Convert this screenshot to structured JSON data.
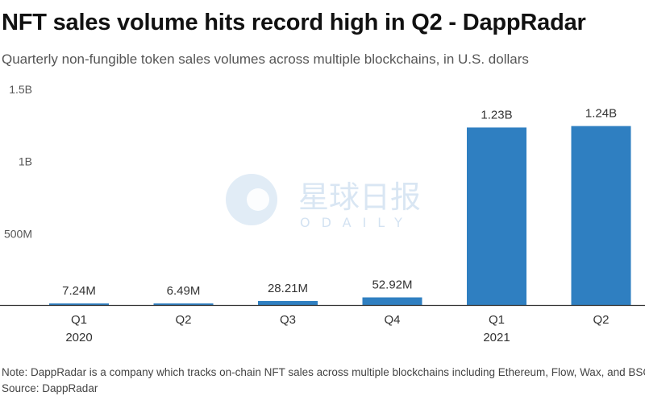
{
  "header": {
    "title": "NFT sales volume hits record high in Q2 - DappRadar",
    "subtitle": "Quarterly non-fungible token sales volumes across multiple blockchains, in U.S. dollars"
  },
  "footer": {
    "note": "Note: DappRadar is a company which tracks on-chain NFT sales across multiple blockchains including Ethereum, Flow, Wax, and BSC.",
    "source": "Source: DappRadar"
  },
  "watermark": {
    "chinese": "星球日报",
    "latin": "ODAILY",
    "icon": "odaily-logo-icon"
  },
  "colors": {
    "bar": "#2f7fc1",
    "axis": "#333333",
    "watermark": "#c9dcef"
  },
  "chart_data": {
    "type": "bar",
    "title": "NFT sales volume hits record high in Q2 - DappRadar",
    "subtitle": "Quarterly non-fungible token sales volumes across multiple blockchains, in U.S. dollars",
    "categories": [
      "Q1",
      "Q2",
      "Q3",
      "Q4",
      "Q1",
      "Q2"
    ],
    "category_groups": [
      "2020",
      "",
      "",
      "",
      "2021",
      ""
    ],
    "values": [
      7240000,
      6490000,
      28210000,
      52920000,
      1230000000,
      1240000000
    ],
    "value_labels": [
      "7.24M",
      "6.49M",
      "28.21M",
      "52.92M",
      "1.23B",
      "1.24B"
    ],
    "ylim": [
      0,
      1500000000
    ],
    "yticks": [
      {
        "value": 500000000,
        "label": "500M"
      },
      {
        "value": 1000000000,
        "label": "1B"
      },
      {
        "value": 1500000000,
        "label": "1.5B"
      }
    ],
    "grid": false,
    "xlabel": "",
    "ylabel": ""
  }
}
